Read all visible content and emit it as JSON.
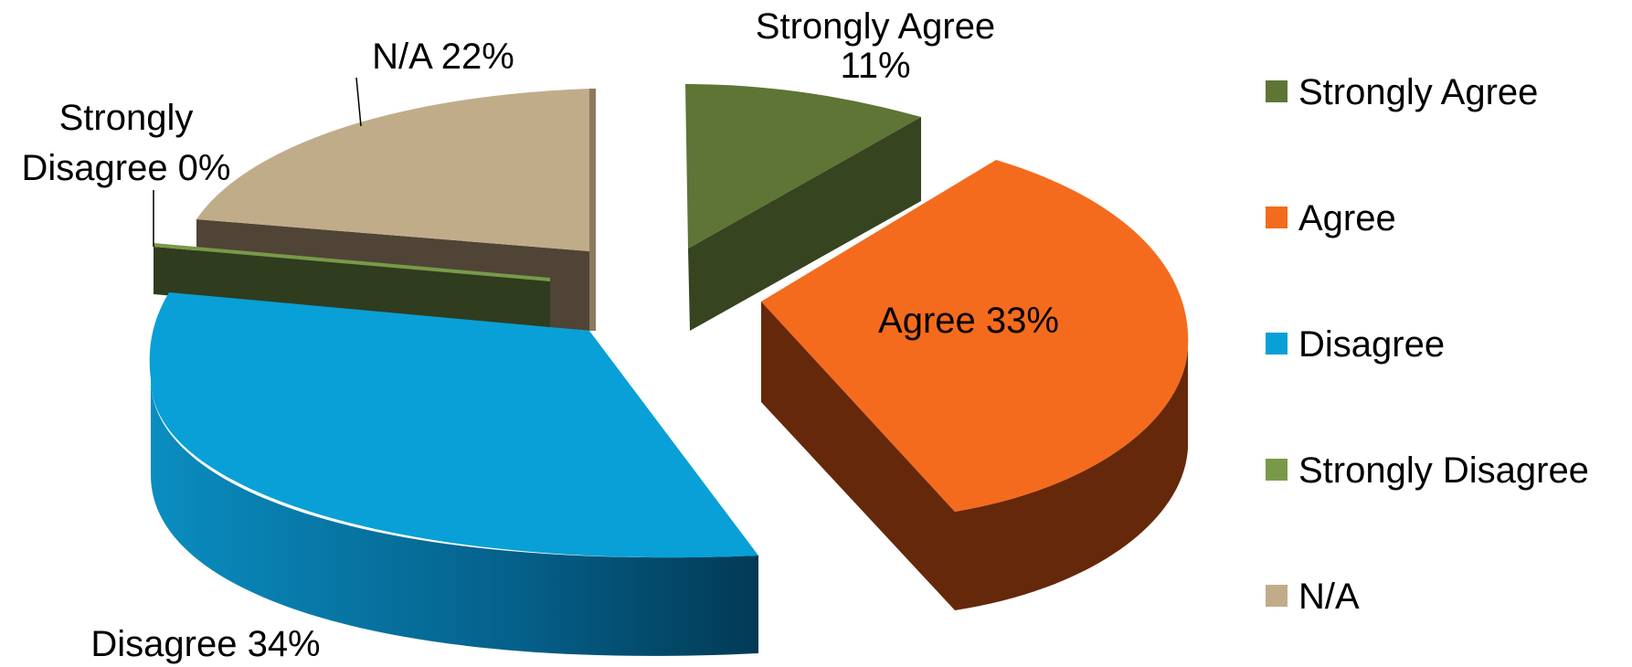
{
  "chart_data": {
    "type": "pie",
    "title": "",
    "slices": [
      {
        "name": "Strongly Agree",
        "value": 11,
        "color": "#5E7536",
        "side_color": "#364420",
        "label_lines": [
          "Strongly Agree",
          "11%"
        ]
      },
      {
        "name": "Agree",
        "value": 33,
        "color": "#F46B1D",
        "side_color": "#66280A",
        "label_lines": [
          "Agree 33%"
        ]
      },
      {
        "name": "Disagree",
        "value": 34,
        "color": "#08A0D6",
        "side_color": "#066F98",
        "label_lines": [
          "Disagree 34%"
        ]
      },
      {
        "name": "Strongly Disagree",
        "value": 0,
        "color": "#789A48",
        "side_color": "#2F3C1E",
        "label_lines": [
          "Strongly",
          "Disagree 0%"
        ]
      },
      {
        "name": "N/A",
        "value": 22,
        "color": "#C1AC8A",
        "side_color": "#4F4436",
        "label_lines": [
          "N/A 22%"
        ]
      }
    ],
    "legend": {
      "position": "right",
      "entries": [
        {
          "label": "Strongly Agree",
          "color": "#5E7536"
        },
        {
          "label": "Agree",
          "color": "#F46B1D"
        },
        {
          "label": "Disagree",
          "color": "#08A0D6"
        },
        {
          "label": "Strongly Disagree",
          "color": "#789A48"
        },
        {
          "label": "N/A",
          "color": "#C1AC8A"
        }
      ]
    },
    "style": "3d-exploded"
  }
}
